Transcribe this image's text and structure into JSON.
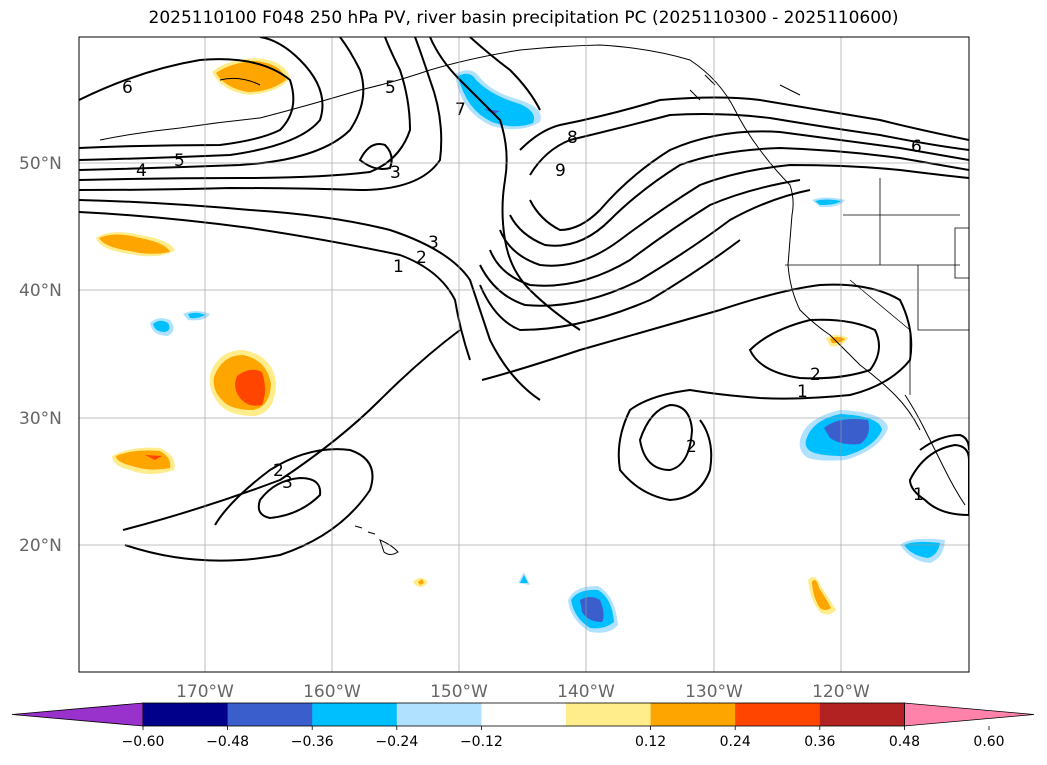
{
  "title": "2025110100 F048 250 hPa PV, river basin precipitation PC (2025110300 - 2025110600)",
  "lat_labels": [
    "50°N",
    "40°N",
    "30°N",
    "20°N"
  ],
  "lon_labels": [
    "170°W",
    "160°W",
    "150°W",
    "140°W",
    "130°W",
    "120°W"
  ],
  "colorbar": {
    "ticks": [
      "−0.60",
      "−0.48",
      "−0.36",
      "−0.24",
      "−0.12",
      "0.12",
      "0.24",
      "0.36",
      "0.48",
      "0.60"
    ],
    "colors": [
      "#9932cc",
      "#00008b",
      "#3a5fcd",
      "#00bfff",
      "#b0e2ff",
      "#ffffff",
      "#ffec8b",
      "#ffa500",
      "#ff4500",
      "#b22222",
      "#ff82ab"
    ]
  },
  "contour_labels": {
    "c6a": "6",
    "c5a": "5",
    "c4a": "4",
    "c5b": "5",
    "c7a": "7",
    "c8a": "8",
    "c9a": "9",
    "c3a": "3",
    "c3b": "3",
    "c2a": "2",
    "c1a": "1",
    "c6b": "6",
    "c2b": "2",
    "c1b": "1",
    "c2c": "2",
    "c2d": "2",
    "c3c": "3",
    "c1c": "1"
  }
}
